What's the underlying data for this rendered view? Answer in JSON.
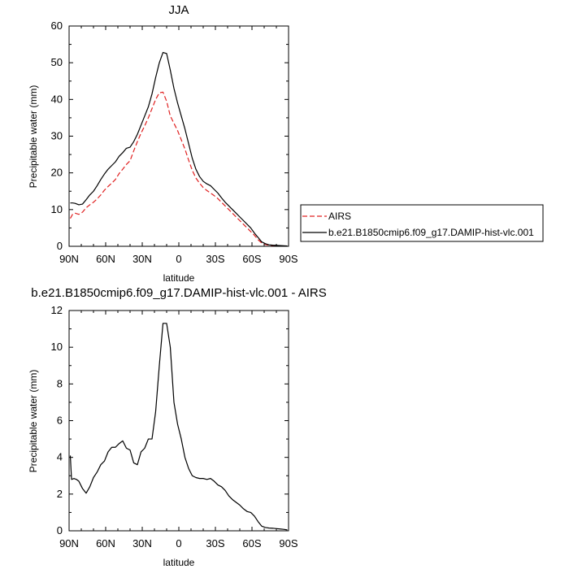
{
  "chart_data": [
    {
      "type": "line",
      "title": "JJA",
      "xlabel": "latitude",
      "ylabel": "Precipitable water (mm)",
      "xlim": [
        90,
        -90
      ],
      "ylim": [
        0,
        60
      ],
      "xticks": [
        90,
        60,
        30,
        0,
        -30,
        -60,
        -90
      ],
      "xtick_labels": [
        "90N",
        "60N",
        "30N",
        "0",
        "30S",
        "60S",
        "90S"
      ],
      "yticks": [
        0,
        10,
        20,
        30,
        40,
        50,
        60
      ],
      "ytick_labels": [
        "0",
        "10",
        "20",
        "30",
        "40",
        "50",
        "60"
      ],
      "legend": {
        "placement": "right"
      },
      "series": [
        {
          "name": "AIRS",
          "color": "#e02020",
          "dash": "dashed",
          "x": [
            89,
            87,
            85,
            82,
            79,
            76,
            73,
            70,
            67,
            64,
            61,
            58,
            55,
            52,
            49,
            46,
            43,
            40,
            37,
            34,
            31,
            28,
            25,
            22,
            19,
            16,
            13,
            10,
            7,
            4,
            1,
            -2,
            -5,
            -8,
            -11,
            -14,
            -17,
            -20,
            -23,
            -26,
            -29,
            -32,
            -35,
            -38,
            -41,
            -44,
            -47,
            -50,
            -53,
            -56,
            -59,
            -62,
            -65,
            -68,
            -71,
            -74,
            -77,
            -80,
            -83,
            -86,
            -89
          ],
          "y": [
            7.6,
            8.8,
            9.0,
            8.7,
            9.3,
            10.5,
            11.3,
            12.0,
            12.9,
            14.0,
            15.3,
            16.3,
            17.2,
            18.2,
            19.8,
            21.0,
            22.3,
            23.3,
            26.0,
            28.5,
            30.8,
            32.8,
            35.0,
            37.5,
            40.0,
            41.8,
            42.0,
            39.5,
            35.5,
            33.5,
            31.5,
            29.0,
            26.5,
            23.5,
            20.7,
            18.6,
            17.2,
            16.0,
            15.2,
            14.5,
            13.8,
            13.0,
            12.0,
            11.0,
            10.0,
            9.0,
            8.0,
            7.0,
            6.0,
            5.0,
            4.0,
            3.0,
            1.8,
            0.9,
            0.5,
            0.3,
            0.2,
            0.15,
            0.1,
            0.1,
            0.05
          ]
        },
        {
          "name": "b.e21.B1850cmip6.f09_g17.DAMIP-hist-vlc.001",
          "color": "#000000",
          "dash": "solid",
          "x": [
            89,
            87,
            85,
            82,
            79,
            76,
            73,
            70,
            67,
            64,
            61,
            58,
            55,
            52,
            49,
            46,
            43,
            40,
            37,
            34,
            31,
            28,
            25,
            22,
            19,
            16,
            13,
            10,
            7,
            4,
            1,
            -2,
            -5,
            -8,
            -11,
            -14,
            -17,
            -20,
            -23,
            -26,
            -29,
            -32,
            -35,
            -38,
            -41,
            -44,
            -47,
            -50,
            -53,
            -56,
            -59,
            -62,
            -65,
            -68,
            -71,
            -74,
            -77,
            -80,
            -83,
            -86,
            -89
          ],
          "y": [
            11.8,
            11.8,
            11.7,
            11.3,
            11.5,
            12.7,
            14.0,
            15.0,
            16.5,
            18.2,
            19.7,
            21.0,
            22.0,
            23.0,
            24.5,
            25.5,
            26.7,
            27.0,
            28.5,
            30.5,
            33.0,
            35.5,
            38.0,
            41.5,
            46.0,
            50.0,
            52.8,
            52.5,
            48.0,
            43.0,
            39.0,
            35.5,
            32.0,
            28.0,
            24.0,
            21.0,
            19.0,
            17.7,
            17.0,
            16.5,
            15.5,
            14.5,
            13.2,
            12.0,
            11.0,
            10.0,
            9.0,
            8.0,
            7.0,
            6.0,
            5.0,
            3.6,
            2.4,
            1.2,
            0.7,
            0.4,
            0.3,
            0.25,
            0.2,
            0.15,
            0.1
          ]
        }
      ]
    },
    {
      "type": "line",
      "title": "b.e21.B1850cmip6.f09_g17.DAMIP-hist-vlc.001 - AIRS",
      "xlabel": "latitude",
      "ylabel": "Precipitable water (mm)",
      "xlim": [
        90,
        -90
      ],
      "ylim": [
        0,
        12
      ],
      "xticks": [
        90,
        60,
        30,
        0,
        -30,
        -60,
        -90
      ],
      "xtick_labels": [
        "90N",
        "60N",
        "30N",
        "0",
        "30S",
        "60S",
        "90S"
      ],
      "yticks": [
        0,
        2,
        4,
        6,
        8,
        10,
        12
      ],
      "ytick_labels": [
        "0",
        "2",
        "4",
        "6",
        "8",
        "10",
        "12"
      ],
      "series": [
        {
          "color": "#000000",
          "dash": "solid",
          "x": [
            89,
            88,
            86,
            84,
            82,
            79,
            76,
            73,
            70,
            67,
            64,
            61,
            58,
            55,
            52,
            49,
            46,
            43,
            40,
            37,
            34,
            31,
            28,
            25,
            22,
            19,
            16,
            13,
            10,
            7,
            4,
            1,
            -2,
            -5,
            -8,
            -11,
            -14,
            -17,
            -20,
            -23,
            -26,
            -29,
            -32,
            -35,
            -38,
            -41,
            -44,
            -47,
            -50,
            -53,
            -56,
            -59,
            -62,
            -65,
            -68,
            -71,
            -74,
            -77,
            -80,
            -83,
            -86,
            -89
          ],
          "y": [
            4.1,
            2.8,
            2.85,
            2.8,
            2.7,
            2.3,
            2.05,
            2.4,
            2.9,
            3.2,
            3.6,
            3.8,
            4.3,
            4.55,
            4.55,
            4.75,
            4.9,
            4.5,
            4.4,
            3.7,
            3.6,
            4.3,
            4.5,
            5.0,
            5.0,
            6.5,
            9.0,
            11.3,
            11.3,
            10.0,
            7.0,
            5.8,
            5.0,
            4.0,
            3.4,
            3.0,
            2.9,
            2.85,
            2.85,
            2.8,
            2.85,
            2.7,
            2.5,
            2.4,
            2.2,
            1.9,
            1.7,
            1.55,
            1.4,
            1.2,
            1.05,
            1.0,
            0.8,
            0.5,
            0.25,
            0.18,
            0.15,
            0.14,
            0.12,
            0.1,
            0.08,
            0.05
          ]
        }
      ]
    }
  ]
}
